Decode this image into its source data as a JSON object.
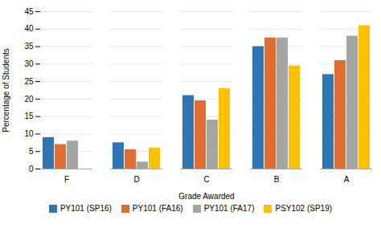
{
  "chart_data": {
    "type": "bar",
    "categories": [
      "F",
      "D",
      "C",
      "B",
      "A"
    ],
    "series": [
      {
        "name": "PY101 (SP16)",
        "color": "#2e75b6",
        "values": [
          9,
          7.5,
          21,
          35,
          27
        ]
      },
      {
        "name": "PY101 (FA16)",
        "color": "#e36c2f",
        "values": [
          7,
          5.5,
          19.5,
          37.5,
          31
        ]
      },
      {
        "name": "PY101 (FA17)",
        "color": "#a5a5a5",
        "values": [
          8,
          2,
          14,
          37.5,
          38
        ]
      },
      {
        "name": "PSY102 (SP19)",
        "color": "#ffc000",
        "values": [
          null,
          6,
          23,
          29.5,
          41
        ]
      }
    ],
    "xlabel": "Grade Awarded",
    "ylabel": "Percentage of Students",
    "ylim": [
      0,
      45
    ],
    "yticks": [
      0,
      5,
      10,
      15,
      20,
      25,
      30,
      35,
      40,
      45
    ],
    "grid": true,
    "legend": "bottom"
  }
}
